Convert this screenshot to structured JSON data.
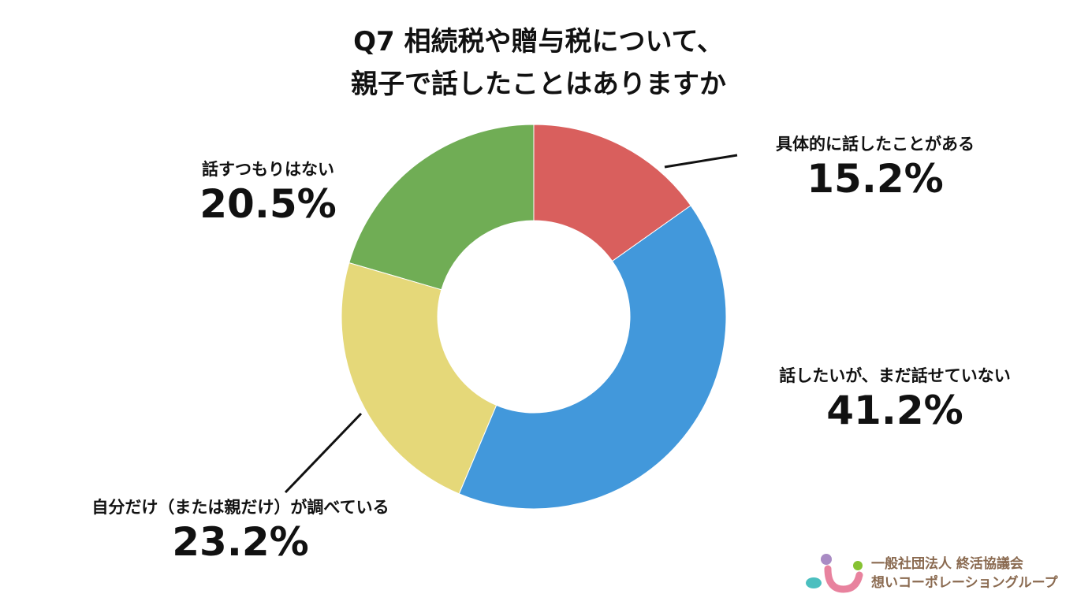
{
  "chart_data": {
    "type": "pie",
    "donut": true,
    "title_lines": [
      "Q7 相続税や贈与税について、",
      "親子で話したことはありますか"
    ],
    "start": "top",
    "direction": "clockwise",
    "slices": [
      {
        "label": "具体的に話したことがある",
        "value": 15.2,
        "display": "15.2%",
        "color": "#d95f5d"
      },
      {
        "label": "話したいが、まだ話せていない",
        "value": 41.2,
        "display": "41.2%",
        "color": "#4298db"
      },
      {
        "label": "自分だけ（または親だけ）が調べている",
        "value": 23.2,
        "display": "23.2%",
        "color": "#e5d879"
      },
      {
        "label": "話すつもりはない",
        "value": 20.5,
        "display": "20.5%",
        "color": "#70ad55"
      }
    ]
  },
  "logo": {
    "line1": "一般社団法人 終活協議会",
    "line2": "想いコーポレーショングループ",
    "colors": {
      "text": "#8a6a50",
      "purple": "#a98bc4",
      "green": "#86c232",
      "teal": "#4bbfbf",
      "pink": "#e8829e"
    }
  }
}
